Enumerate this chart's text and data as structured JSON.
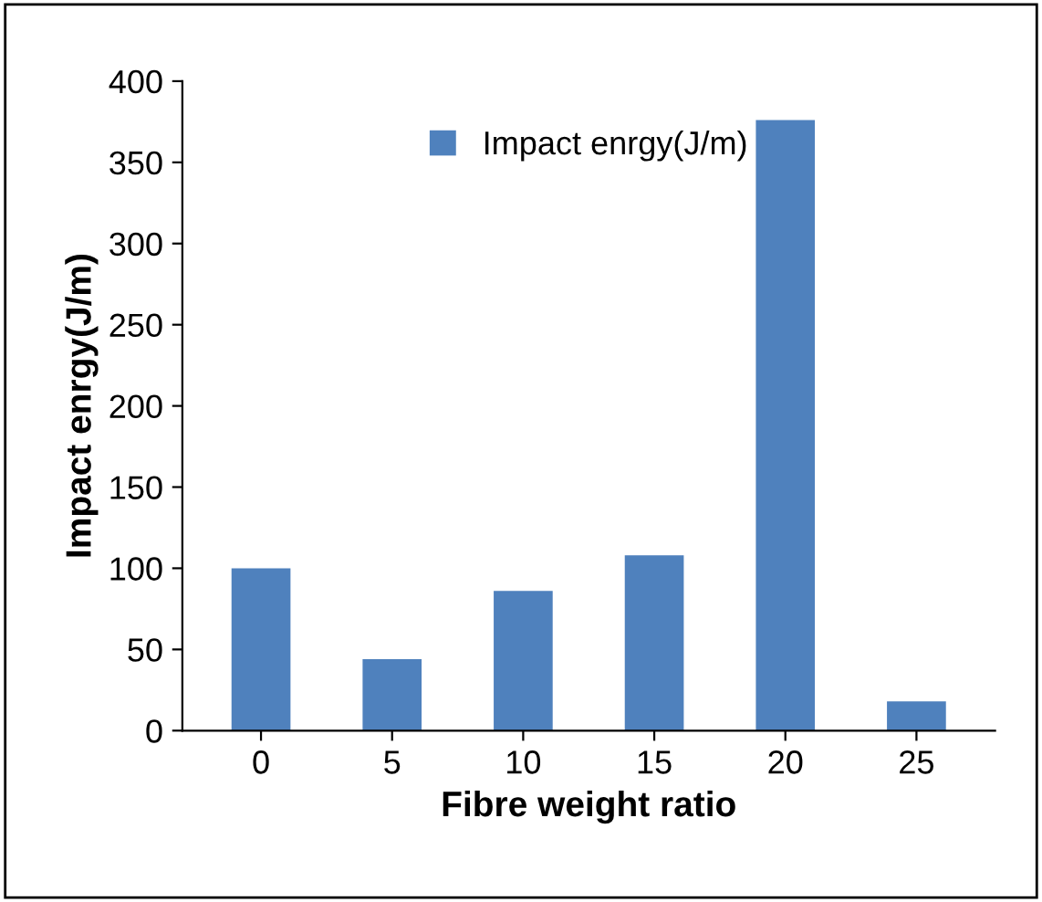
{
  "chart_data": {
    "type": "bar",
    "xlabel": "Fibre weight ratio",
    "ylabel": "Impact enrgy(J/m)",
    "categories": [
      "0",
      "5",
      "10",
      "15",
      "20",
      "25"
    ],
    "series": [
      {
        "name": "Impact enrgy(J/m)",
        "color": "#4f81bd",
        "values": [
          100,
          44,
          86,
          108,
          376,
          18
        ]
      }
    ],
    "ylim": [
      0,
      400
    ],
    "yticks": [
      0,
      50,
      100,
      150,
      200,
      250,
      300,
      350,
      400
    ],
    "grid": false,
    "legend": "top"
  }
}
